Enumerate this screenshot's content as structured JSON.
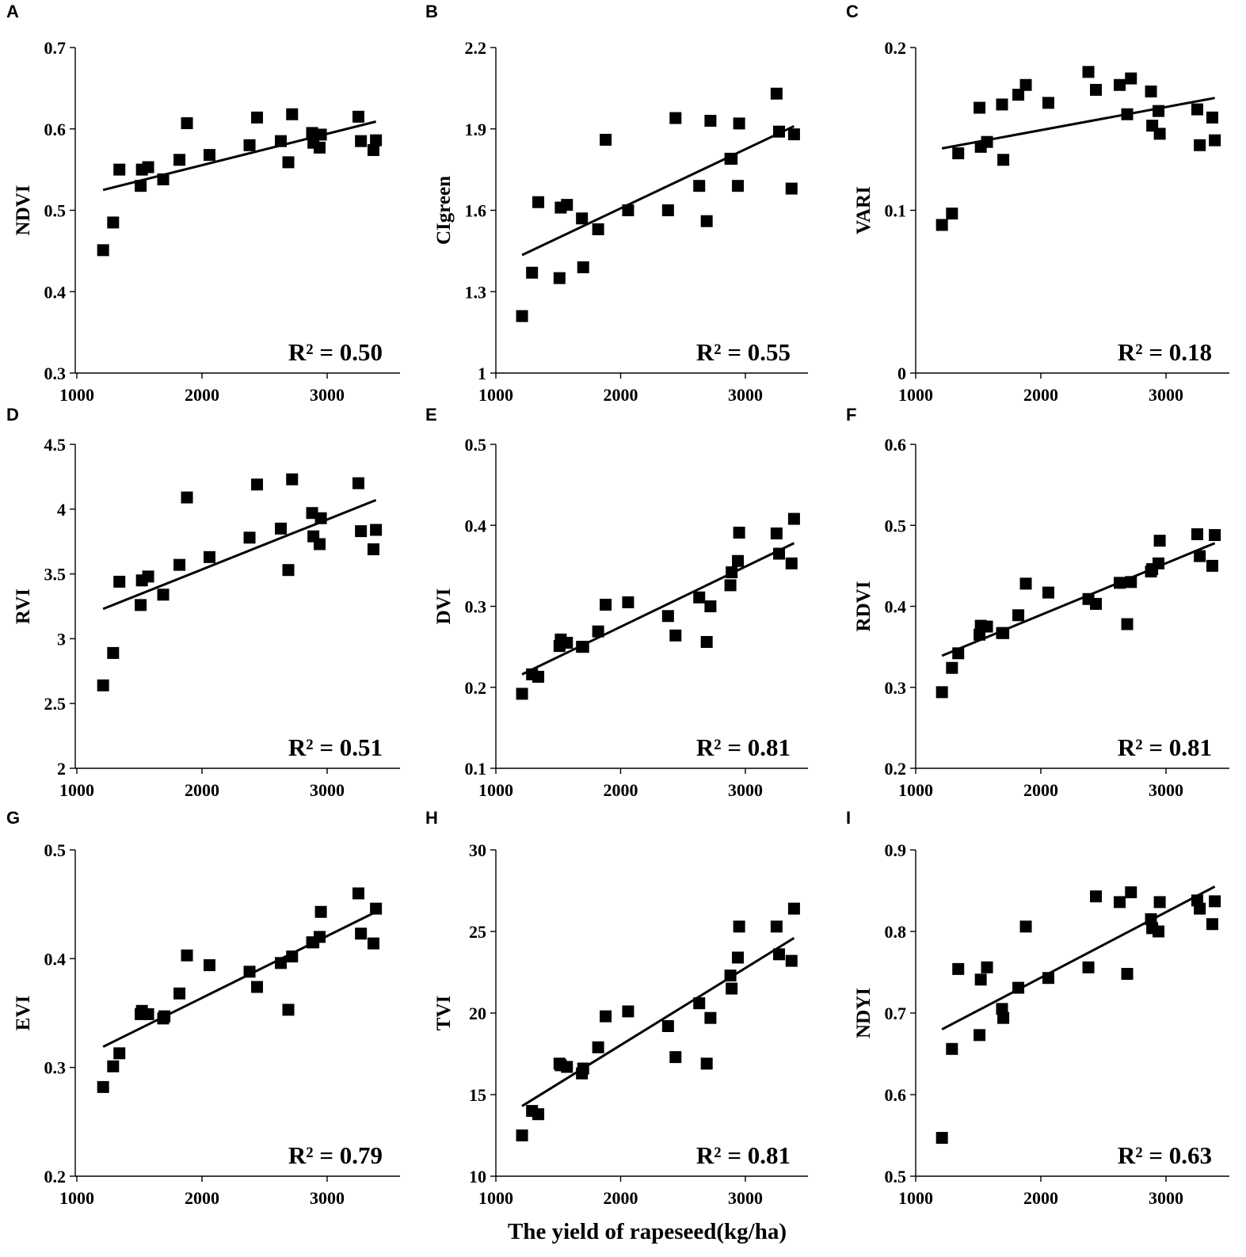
{
  "figure": {
    "x_axis_title": "The yield of rapeseed(kg/ha)"
  },
  "chart_data": [
    {
      "panel": "A",
      "type": "scatter",
      "ylabel": "NDVI",
      "xlim": [
        1000,
        3500
      ],
      "ylim": [
        0.3,
        0.7
      ],
      "xticks": [
        "1000",
        "2000",
        "3000"
      ],
      "yticks": [
        "0.3",
        "0.4",
        "0.5",
        "0.6",
        "0.7"
      ],
      "r2": "R² = 0.50",
      "x": [
        1210,
        1290,
        1340,
        1510,
        1520,
        1570,
        1690,
        1820,
        1880,
        2060,
        2380,
        2440,
        2630,
        2690,
        2720,
        2880,
        2890,
        2940,
        2950,
        3250,
        3270,
        3370,
        3390
      ],
      "y": [
        0.451,
        0.485,
        0.55,
        0.53,
        0.55,
        0.553,
        0.538,
        0.562,
        0.607,
        0.568,
        0.58,
        0.614,
        0.585,
        0.559,
        0.618,
        0.595,
        0.583,
        0.577,
        0.593,
        0.615,
        0.585,
        0.574,
        0.586
      ],
      "trend": [
        [
          1210,
          0.525
        ],
        [
          3390,
          0.609
        ]
      ]
    },
    {
      "panel": "B",
      "type": "scatter",
      "ylabel": "CIgreen",
      "xlim": [
        1000,
        3500
      ],
      "ylim": [
        1.0,
        2.2
      ],
      "xticks": [
        "1000",
        "2000",
        "3000"
      ],
      "yticks": [
        "1",
        "1.3",
        "1.6",
        "1.9",
        "2.2"
      ],
      "r2": "R² = 0.55",
      "x": [
        1210,
        1290,
        1340,
        1510,
        1520,
        1570,
        1690,
        1700,
        1820,
        1880,
        2060,
        2380,
        2440,
        2630,
        2690,
        2720,
        2880,
        2890,
        2940,
        2950,
        3250,
        3270,
        3370,
        3390
      ],
      "y": [
        1.21,
        1.37,
        1.63,
        1.35,
        1.61,
        1.62,
        1.57,
        1.39,
        1.53,
        1.86,
        1.6,
        1.6,
        1.94,
        1.69,
        1.56,
        1.93,
        1.79,
        1.79,
        1.69,
        1.92,
        2.03,
        1.89,
        1.68,
        1.88
      ],
      "trend": [
        [
          1210,
          1.435
        ],
        [
          3390,
          1.91
        ]
      ]
    },
    {
      "panel": "C",
      "type": "scatter",
      "ylabel": "VARI",
      "xlim": [
        1000,
        3500
      ],
      "ylim": [
        0,
        0.2
      ],
      "xticks": [
        "1000",
        "2000",
        "3000"
      ],
      "yticks": [
        "0",
        "0.1",
        "0.2"
      ],
      "r2": "R² = 0.18",
      "x": [
        1210,
        1290,
        1340,
        1510,
        1520,
        1570,
        1690,
        1700,
        1820,
        1880,
        2060,
        2380,
        2440,
        2630,
        2690,
        2720,
        2880,
        2890,
        2940,
        2950,
        3250,
        3270,
        3370,
        3390
      ],
      "y": [
        0.091,
        0.098,
        0.135,
        0.163,
        0.139,
        0.142,
        0.165,
        0.131,
        0.171,
        0.177,
        0.166,
        0.185,
        0.174,
        0.177,
        0.159,
        0.181,
        0.173,
        0.152,
        0.161,
        0.147,
        0.162,
        0.14,
        0.157,
        0.143
      ],
      "trend": [
        [
          1210,
          0.138
        ],
        [
          3390,
          0.169
        ]
      ]
    },
    {
      "panel": "D",
      "type": "scatter",
      "ylabel": "RVI",
      "xlim": [
        1000,
        3500
      ],
      "ylim": [
        2,
        4.5
      ],
      "xticks": [
        "1000",
        "2000",
        "3000"
      ],
      "yticks": [
        "2",
        "2.5",
        "3",
        "3.5",
        "4",
        "4.5"
      ],
      "r2": "R² = 0.51",
      "x": [
        1210,
        1290,
        1340,
        1510,
        1520,
        1570,
        1690,
        1820,
        1880,
        2060,
        2380,
        2440,
        2630,
        2690,
        2720,
        2880,
        2890,
        2940,
        2950,
        3250,
        3270,
        3370,
        3390
      ],
      "y": [
        2.64,
        2.89,
        3.44,
        3.26,
        3.45,
        3.48,
        3.34,
        3.57,
        4.09,
        3.63,
        3.78,
        4.19,
        3.85,
        3.53,
        4.23,
        3.97,
        3.79,
        3.73,
        3.93,
        4.2,
        3.83,
        3.69,
        3.84
      ],
      "trend": [
        [
          1210,
          3.23
        ],
        [
          3390,
          4.07
        ]
      ]
    },
    {
      "panel": "E",
      "type": "scatter",
      "ylabel": "DVI",
      "xlim": [
        1000,
        3500
      ],
      "ylim": [
        0.1,
        0.5
      ],
      "xticks": [
        "1000",
        "2000",
        "3000"
      ],
      "yticks": [
        "0.1",
        "0.2",
        "0.3",
        "0.4",
        "0.5"
      ],
      "r2": "R² = 0.81",
      "x": [
        1210,
        1290,
        1340,
        1510,
        1520,
        1570,
        1690,
        1700,
        1820,
        1880,
        2060,
        2380,
        2440,
        2630,
        2690,
        2720,
        2880,
        2890,
        2940,
        2950,
        3250,
        3270,
        3370,
        3390
      ],
      "y": [
        0.192,
        0.216,
        0.213,
        0.251,
        0.259,
        0.255,
        0.25,
        0.25,
        0.269,
        0.302,
        0.305,
        0.288,
        0.264,
        0.311,
        0.256,
        0.3,
        0.326,
        0.342,
        0.356,
        0.391,
        0.39,
        0.365,
        0.353,
        0.408
      ],
      "trend": [
        [
          1210,
          0.216
        ],
        [
          3390,
          0.378
        ]
      ]
    },
    {
      "panel": "F",
      "type": "scatter",
      "ylabel": "RDVI",
      "xlim": [
        1000,
        3500
      ],
      "ylim": [
        0.2,
        0.6
      ],
      "xticks": [
        "1000",
        "2000",
        "3000"
      ],
      "yticks": [
        "0.2",
        "0.3",
        "0.4",
        "0.5",
        "0.6"
      ],
      "r2": "R² = 0.81",
      "x": [
        1210,
        1290,
        1340,
        1510,
        1520,
        1570,
        1690,
        1700,
        1820,
        1880,
        2060,
        2380,
        2440,
        2630,
        2690,
        2720,
        2880,
        2890,
        2940,
        2950,
        3250,
        3270,
        3370,
        3390
      ],
      "y": [
        0.294,
        0.324,
        0.342,
        0.365,
        0.376,
        0.375,
        0.367,
        0.367,
        0.389,
        0.428,
        0.417,
        0.409,
        0.403,
        0.429,
        0.378,
        0.43,
        0.443,
        0.446,
        0.453,
        0.481,
        0.489,
        0.462,
        0.45,
        0.488
      ],
      "trend": [
        [
          1210,
          0.339
        ],
        [
          3390,
          0.478
        ]
      ]
    },
    {
      "panel": "G",
      "type": "scatter",
      "ylabel": "EVI",
      "xlim": [
        1000,
        3500
      ],
      "ylim": [
        0.2,
        0.5
      ],
      "xticks": [
        "1000",
        "2000",
        "3000"
      ],
      "yticks": [
        "0.2",
        "0.3",
        "0.4",
        "0.5"
      ],
      "r2": "R² = 0.79",
      "x": [
        1210,
        1290,
        1340,
        1510,
        1520,
        1570,
        1690,
        1700,
        1820,
        1880,
        2060,
        2380,
        2440,
        2630,
        2690,
        2720,
        2880,
        2890,
        2940,
        2950,
        3250,
        3270,
        3370,
        3390
      ],
      "y": [
        0.282,
        0.301,
        0.313,
        0.349,
        0.352,
        0.349,
        0.345,
        0.347,
        0.368,
        0.403,
        0.394,
        0.388,
        0.374,
        0.396,
        0.353,
        0.402,
        0.415,
        0.415,
        0.42,
        0.443,
        0.46,
        0.423,
        0.414,
        0.446
      ],
      "trend": [
        [
          1210,
          0.319
        ],
        [
          3390,
          0.443
        ]
      ]
    },
    {
      "panel": "H",
      "type": "scatter",
      "ylabel": "TVI",
      "xlim": [
        1000,
        3500
      ],
      "ylim": [
        10,
        30
      ],
      "xticks": [
        "1000",
        "2000",
        "3000"
      ],
      "yticks": [
        "10",
        "15",
        "20",
        "25",
        "30"
      ],
      "r2": "R² = 0.81",
      "x": [
        1210,
        1290,
        1340,
        1510,
        1520,
        1570,
        1690,
        1700,
        1820,
        1880,
        2060,
        2380,
        2440,
        2630,
        2690,
        2720,
        2880,
        2890,
        2940,
        2950,
        3250,
        3270,
        3370,
        3390
      ],
      "y": [
        12.5,
        14.0,
        13.8,
        16.9,
        16.8,
        16.7,
        16.3,
        16.6,
        17.9,
        19.8,
        20.1,
        19.2,
        17.3,
        20.6,
        16.9,
        19.7,
        22.3,
        21.5,
        23.4,
        25.3,
        25.3,
        23.6,
        23.2,
        26.4
      ],
      "trend": [
        [
          1210,
          14.3
        ],
        [
          3390,
          24.6
        ]
      ]
    },
    {
      "panel": "I",
      "type": "scatter",
      "ylabel": "NDYI",
      "xlim": [
        1000,
        3500
      ],
      "ylim": [
        0.5,
        0.9
      ],
      "xticks": [
        "1000",
        "2000",
        "3000"
      ],
      "yticks": [
        "0.5",
        "0.6",
        "0.7",
        "0.8",
        "0.9"
      ],
      "r2": "R² = 0.63",
      "x": [
        1210,
        1290,
        1340,
        1510,
        1520,
        1570,
        1690,
        1700,
        1820,
        1880,
        2060,
        2380,
        2440,
        2630,
        2690,
        2720,
        2880,
        2890,
        2940,
        2950,
        3250,
        3270,
        3370,
        3390
      ],
      "y": [
        0.547,
        0.656,
        0.754,
        0.673,
        0.741,
        0.756,
        0.705,
        0.694,
        0.731,
        0.806,
        0.743,
        0.756,
        0.843,
        0.836,
        0.748,
        0.848,
        0.815,
        0.804,
        0.8,
        0.836,
        0.838,
        0.828,
        0.809,
        0.837
      ],
      "trend": [
        [
          1210,
          0.68
        ],
        [
          3390,
          0.855
        ]
      ]
    }
  ]
}
